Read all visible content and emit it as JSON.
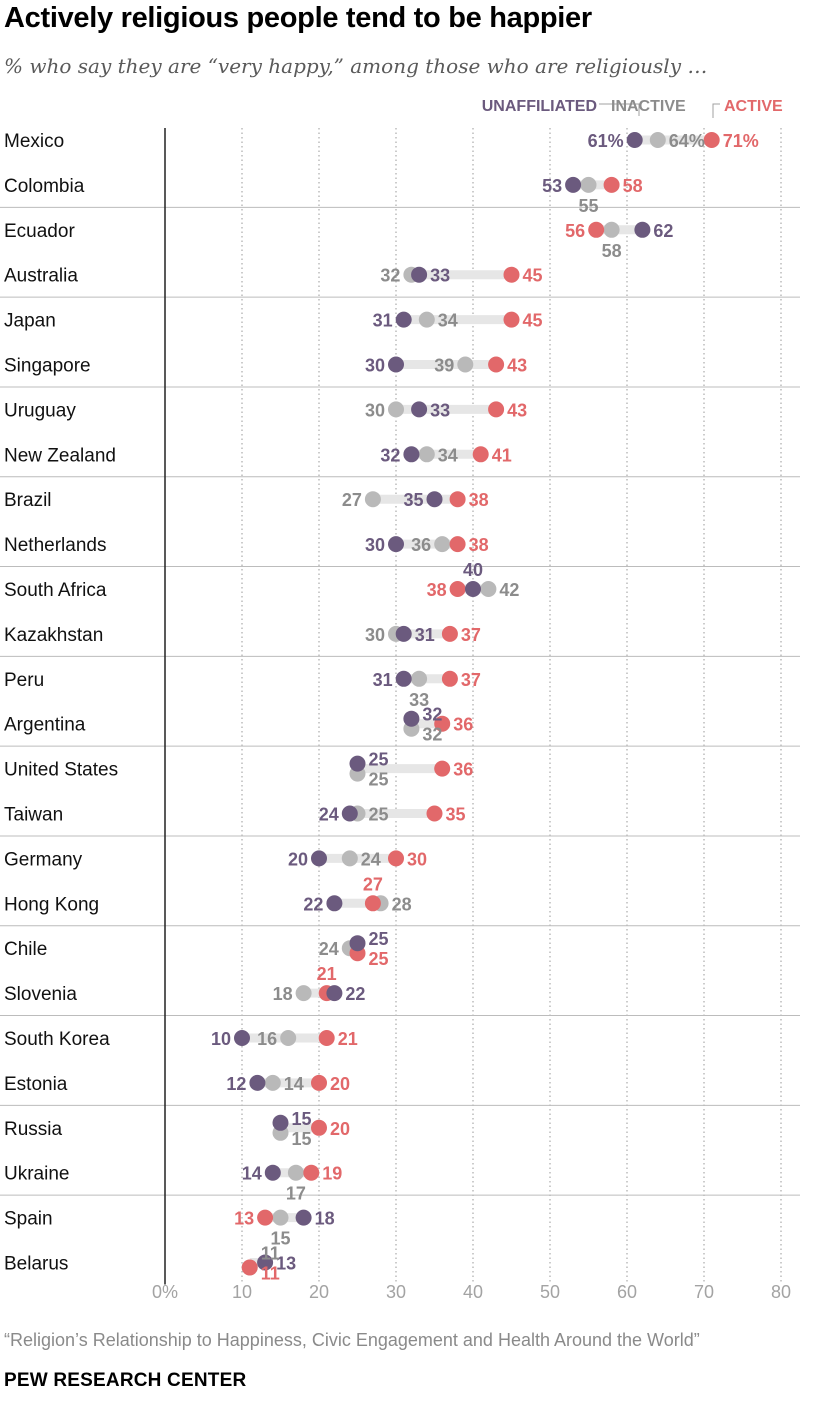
{
  "title": "Actively religious people tend to be happier",
  "subtitle": "% who say they are “very happy,” among those who are religiously …",
  "source": "“Religion’s Relationship to Happiness, Civic Engagement and Health Around the World”",
  "brand": "PEW RESEARCH CENTER",
  "colors": {
    "unaffiliated": "#6b5a7e",
    "inactive": "#b9b9b9",
    "inactive_text": "#8c8c8c",
    "active": "#e2686a",
    "connector": "#e6e6e6",
    "axis_text": "#a3a3a3",
    "separator": "#bcbcbc"
  },
  "chart_data": {
    "type": "dot",
    "title": "Actively religious people tend to be happier",
    "subtitle": "% who say they are “very happy,” among those who are religiously …",
    "xlim": [
      0,
      80
    ],
    "x_ticks": [
      0,
      10,
      20,
      30,
      40,
      50,
      60,
      70,
      80
    ],
    "x_tick_labels": [
      "0%",
      "10",
      "20",
      "30",
      "40",
      "50",
      "60",
      "70",
      "80"
    ],
    "legend": [
      "UNAFFILIATED",
      "INACTIVE",
      "ACTIVE"
    ],
    "series_names": [
      "unaffiliated",
      "inactive",
      "active"
    ],
    "categories": [
      {
        "country": "Mexico",
        "unaffiliated": 61,
        "inactive": 64,
        "active": 71,
        "labels": {
          "unaffiliated": "61%",
          "inactive": "64%",
          "active": "71%"
        }
      },
      {
        "country": "Colombia",
        "unaffiliated": 53,
        "inactive": 55,
        "active": 58
      },
      {
        "country": "Ecuador",
        "unaffiliated": 62,
        "inactive": 58,
        "active": 56
      },
      {
        "country": "Australia",
        "unaffiliated": 33,
        "inactive": 32,
        "active": 45
      },
      {
        "country": "Japan",
        "unaffiliated": 31,
        "inactive": 34,
        "active": 45
      },
      {
        "country": "Singapore",
        "unaffiliated": 30,
        "inactive": 39,
        "active": 43
      },
      {
        "country": "Uruguay",
        "unaffiliated": 33,
        "inactive": 30,
        "active": 43
      },
      {
        "country": "New Zealand",
        "unaffiliated": 32,
        "inactive": 34,
        "active": 41
      },
      {
        "country": "Brazil",
        "unaffiliated": 35,
        "inactive": 27,
        "active": 38
      },
      {
        "country": "Netherlands",
        "unaffiliated": 30,
        "inactive": 36,
        "active": 38
      },
      {
        "country": "South Africa",
        "unaffiliated": 40,
        "inactive": 42,
        "active": 38
      },
      {
        "country": "Kazakhstan",
        "unaffiliated": 31,
        "inactive": 30,
        "active": 37
      },
      {
        "country": "Peru",
        "unaffiliated": 31,
        "inactive": 33,
        "active": 37
      },
      {
        "country": "Argentina",
        "unaffiliated": 32,
        "inactive": 32,
        "active": 36
      },
      {
        "country": "United States",
        "unaffiliated": 25,
        "inactive": 25,
        "active": 36
      },
      {
        "country": "Taiwan",
        "unaffiliated": 24,
        "inactive": 25,
        "active": 35
      },
      {
        "country": "Germany",
        "unaffiliated": 20,
        "inactive": 24,
        "active": 30
      },
      {
        "country": "Hong Kong",
        "unaffiliated": 22,
        "inactive": 28,
        "active": 27
      },
      {
        "country": "Chile",
        "unaffiliated": 25,
        "inactive": 24,
        "active": 25
      },
      {
        "country": "Slovenia",
        "unaffiliated": 22,
        "inactive": 18,
        "active": 21
      },
      {
        "country": "South Korea",
        "unaffiliated": 10,
        "inactive": 16,
        "active": 21
      },
      {
        "country": "Estonia",
        "unaffiliated": 12,
        "inactive": 14,
        "active": 20
      },
      {
        "country": "Russia",
        "unaffiliated": 15,
        "inactive": 15,
        "active": 20
      },
      {
        "country": "Ukraine",
        "unaffiliated": 14,
        "inactive": 17,
        "active": 19
      },
      {
        "country": "Spain",
        "unaffiliated": 18,
        "inactive": 15,
        "active": 13
      },
      {
        "country": "Belarus",
        "unaffiliated": 13,
        "inactive": 11,
        "active": 11
      }
    ]
  }
}
